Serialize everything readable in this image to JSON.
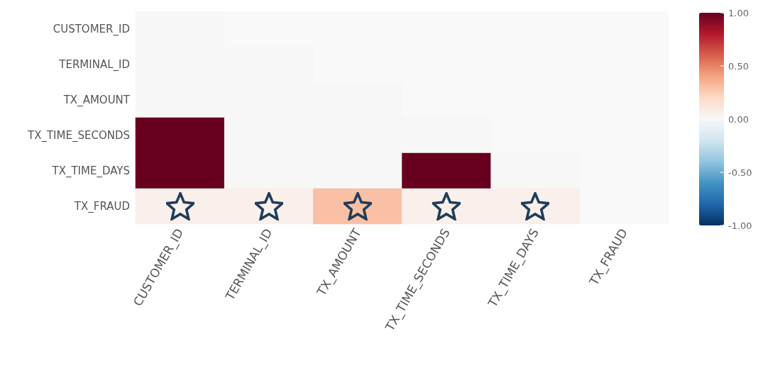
{
  "chart_data": {
    "type": "heatmap",
    "categories": [
      "CUSTOMER_ID",
      "TERMINAL_ID",
      "TX_AMOUNT",
      "TX_TIME_SECONDS",
      "TX_TIME_DAYS",
      "TX_FRAUD"
    ],
    "y_categories": [
      "CUSTOMER_ID",
      "TERMINAL_ID",
      "TX_AMOUNT",
      "TX_TIME_SECONDS",
      "TX_TIME_DAYS",
      "TX_FRAUD"
    ],
    "cells": [
      [
        0,
        null,
        null,
        null,
        null,
        null
      ],
      [
        0,
        0,
        null,
        null,
        null,
        null
      ],
      [
        0,
        0,
        0,
        null,
        null,
        null
      ],
      [
        1,
        0,
        0,
        0,
        null,
        null
      ],
      [
        1,
        0,
        0,
        1,
        0,
        null
      ],
      [
        0.05,
        0.05,
        0.3,
        0.05,
        0.05,
        null
      ]
    ],
    "clim": [
      -1,
      1
    ],
    "cticks": [
      {
        "value": 1,
        "label": "1.00"
      },
      {
        "value": 0.5,
        "label": "0.50"
      },
      {
        "value": 0,
        "label": "0.00"
      },
      {
        "value": -0.5,
        "label": "-0.50"
      },
      {
        "value": -1,
        "label": "-1.00"
      }
    ]
  }
}
